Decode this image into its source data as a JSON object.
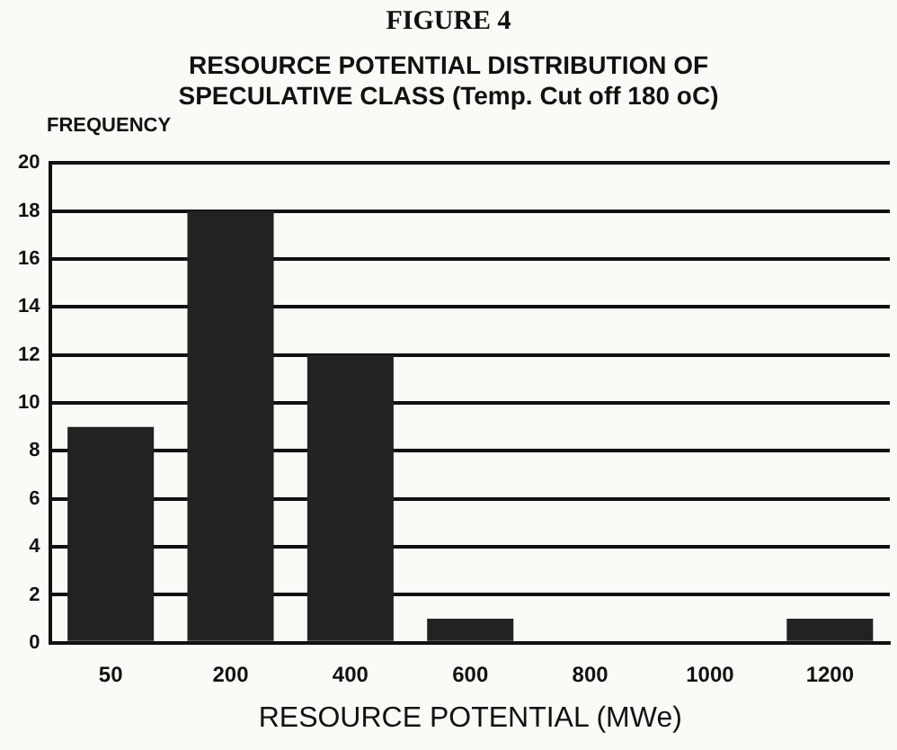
{
  "chart_data": {
    "type": "bar",
    "title": "FIGURE 4",
    "subtitle": "RESOURCE POTENTIAL DISTRIBUTION OF SPECULATIVE CLASS (Temp. Cut off 180 oC)",
    "xlabel": "RESOURCE POTENTIAL (MWe)",
    "ylabel": "FREQUENCY",
    "categories": [
      "50",
      "200",
      "400",
      "600",
      "800",
      "1000",
      "1200"
    ],
    "values": [
      9,
      18,
      12,
      1,
      0,
      0,
      1
    ],
    "color": "#222222",
    "ylim": [
      0,
      20
    ],
    "yticks": [
      0,
      2,
      4,
      6,
      8,
      10,
      12,
      14,
      16,
      18,
      20
    ],
    "grid": "y"
  }
}
